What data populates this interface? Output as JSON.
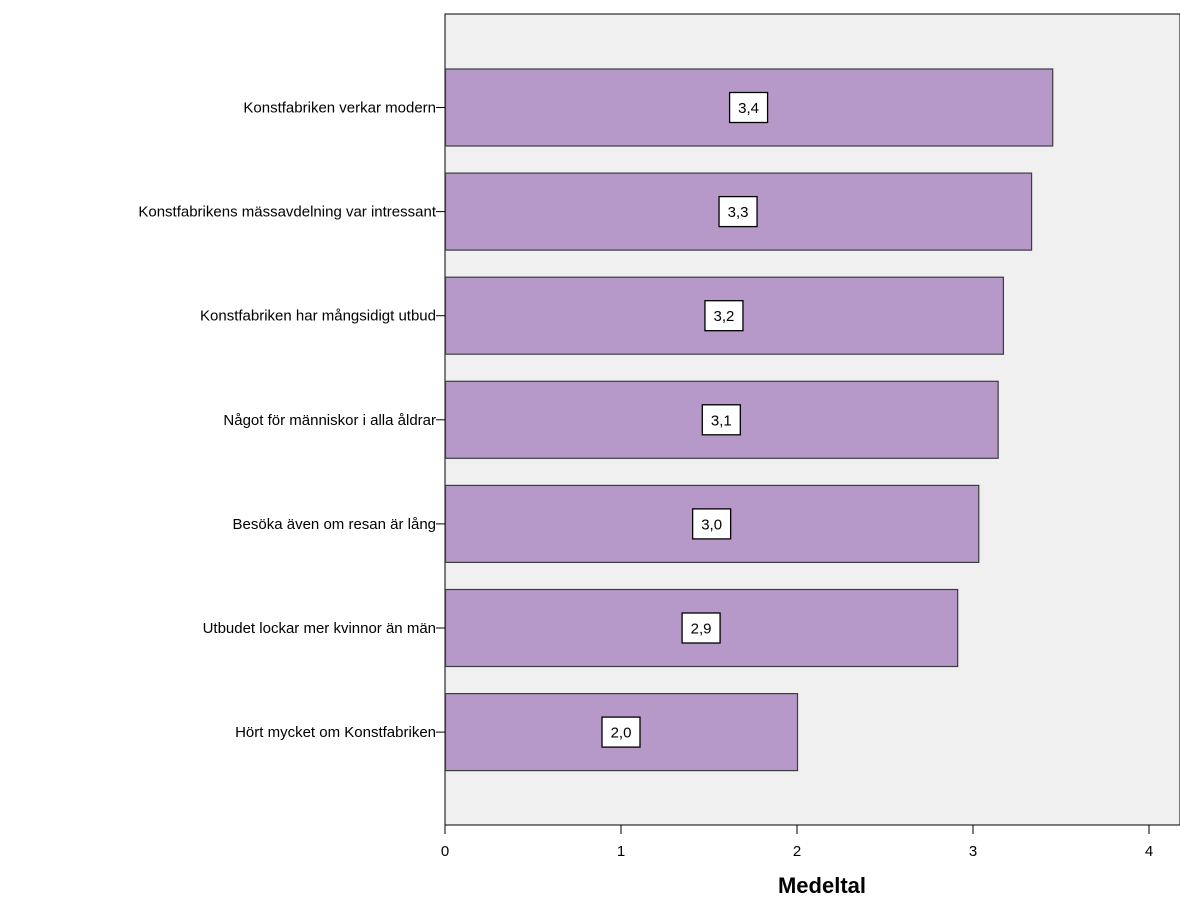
{
  "chart_data": {
    "type": "bar",
    "orientation": "horizontal",
    "categories": [
      "Konstfabriken verkar modern",
      "Konstfabrikens mässavdelning var intressant",
      "Konstfabriken har mångsidigt utbud",
      "Något för människor i alla åldrar",
      "Besöka även om resan är lång",
      "Utbudet lockar mer kvinnor än män",
      "Hört mycket om Konstfabriken"
    ],
    "values": [
      3.45,
      3.33,
      3.17,
      3.14,
      3.03,
      2.91,
      2.0
    ],
    "data_labels": [
      "3,4",
      "3,3",
      "3,2",
      "3,1",
      "3,0",
      "2,9",
      "2,0"
    ],
    "title": "",
    "xlabel": "Medeltal",
    "ylabel": "",
    "xlim": [
      0,
      4.1
    ],
    "xticks": [
      0,
      1,
      2,
      3,
      4
    ],
    "xtick_labels": [
      "0",
      "1",
      "2",
      "3",
      "4"
    ],
    "grid": false,
    "legend": "none",
    "colors": {
      "bar_fill": "#b799c9",
      "bar_stroke": "#3c3c3c",
      "plot_background": "#f0f0f0",
      "axis": "#000000",
      "label_box_fill": "#ffffff",
      "label_box_stroke": "#000000"
    }
  }
}
